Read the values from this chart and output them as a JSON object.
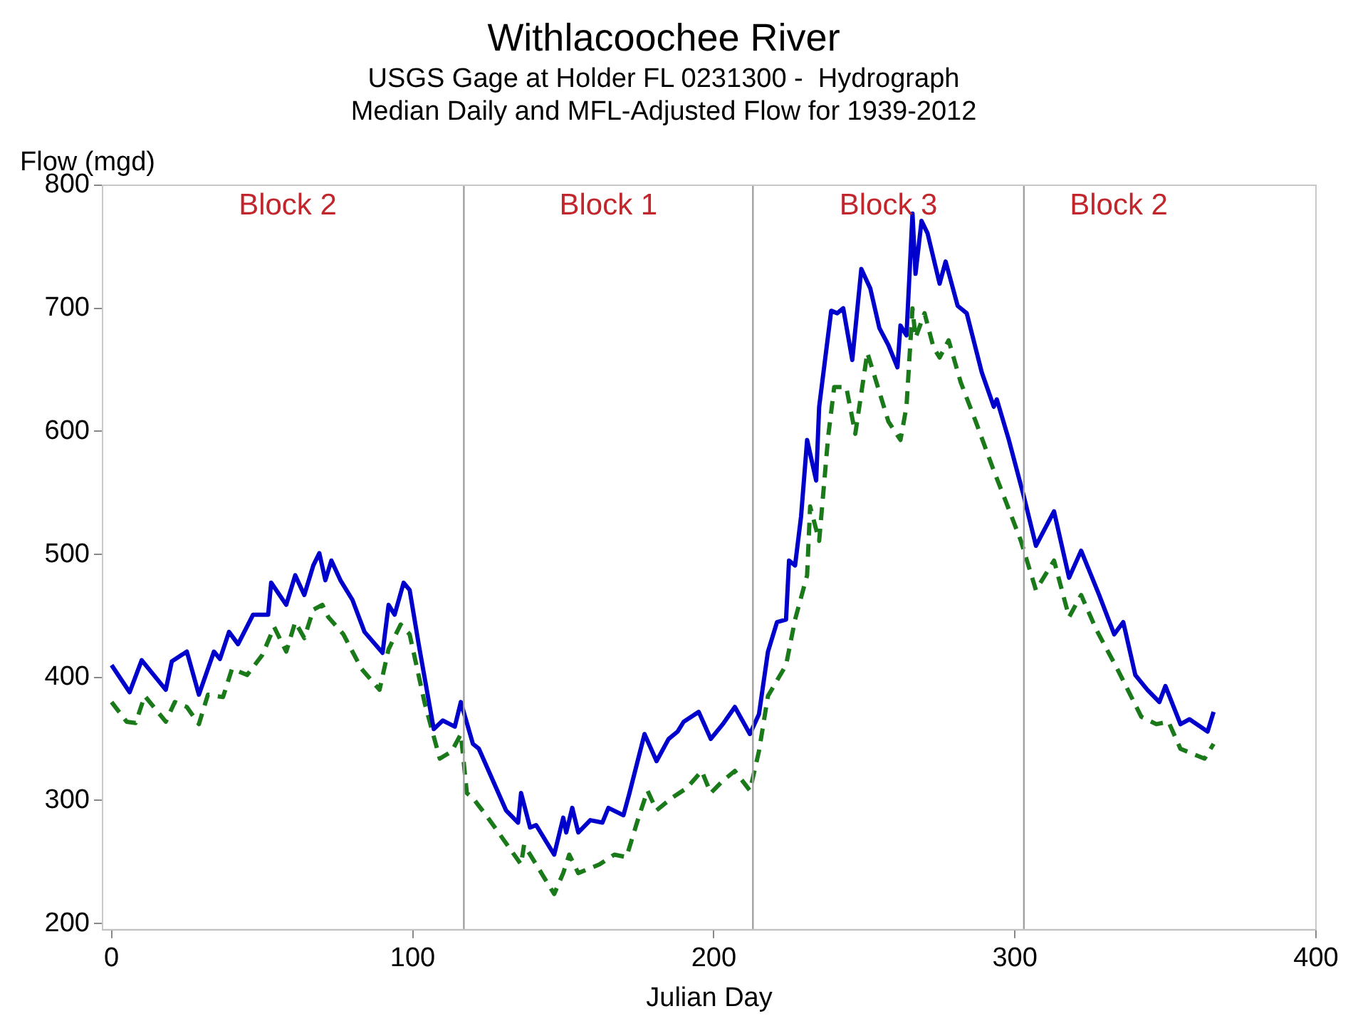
{
  "chart_data": {
    "type": "line",
    "title": "Withlacoochee River",
    "subtitle": "USGS Gage at Holder FL 0231300 -  Hydrograph\nMedian Daily and MFL-Adjusted Flow for 1939-2012",
    "xlabel": "Julian Day",
    "ylabel": "Flow (mgd)",
    "xlim": [
      -3,
      400
    ],
    "xticks": [
      0,
      100,
      200,
      300,
      400
    ],
    "ylim": [
      195,
      800
    ],
    "yticks": [
      200,
      300,
      400,
      500,
      600,
      700,
      800
    ],
    "grid": false,
    "legend": false,
    "marker": "none",
    "ref_lines": [
      {
        "axis": "x",
        "value": 117,
        "color": "#a0a0a0"
      },
      {
        "axis": "x",
        "value": 213,
        "color": "#a0a0a0"
      },
      {
        "axis": "x",
        "value": 303,
        "color": "#a0a0a0"
      }
    ],
    "annotations": [
      "Block 2",
      "Block 1",
      "Block 3",
      "Block 2"
    ],
    "series": [
      {
        "color": "#0000cc",
        "line_style": "solid",
        "x": [
          0,
          6,
          10,
          18,
          20,
          25,
          29,
          34,
          36,
          39,
          42,
          47,
          52,
          53,
          58,
          61,
          64,
          67,
          69,
          71,
          73,
          76,
          80,
          84,
          90,
          92,
          94,
          97,
          99,
          102,
          107,
          110,
          114,
          116,
          120,
          122,
          131,
          135,
          136,
          139,
          141,
          147,
          150,
          151,
          153,
          155,
          159,
          163,
          165,
          170,
          172,
          177,
          181,
          185,
          188,
          190,
          195,
          199,
          203,
          207,
          212,
          215,
          218,
          221,
          224,
          225,
          227,
          229,
          231,
          234,
          235,
          239,
          241,
          243,
          246,
          249,
          252,
          255,
          258,
          261,
          262,
          264,
          266,
          267,
          269,
          271,
          275,
          277,
          281,
          284,
          289,
          293,
          294,
          298,
          303,
          307,
          313,
          318,
          322,
          328,
          333,
          336,
          340,
          344,
          348,
          350,
          355,
          358,
          364,
          366
        ],
        "values": [
          410,
          388,
          414,
          390,
          413,
          421,
          386,
          421,
          415,
          437,
          427,
          451,
          451,
          477,
          459,
          483,
          467,
          491,
          501,
          479,
          495,
          479,
          463,
          437,
          420,
          459,
          451,
          477,
          471,
          427,
          358,
          365,
          360,
          380,
          346,
          342,
          292,
          282,
          306,
          278,
          280,
          256,
          286,
          274,
          294,
          274,
          284,
          282,
          294,
          288,
          306,
          354,
          332,
          350,
          356,
          364,
          372,
          350,
          362,
          376,
          354,
          370,
          421,
          445,
          447,
          495,
          491,
          531,
          593,
          560,
          620,
          698,
          696,
          700,
          658,
          732,
          716,
          684,
          670,
          652,
          686,
          678,
          777,
          728,
          771,
          761,
          720,
          738,
          702,
          696,
          648,
          620,
          626,
          593,
          547,
          507,
          535,
          481,
          503,
          467,
          435,
          445,
          402,
          390,
          380,
          393,
          362,
          366,
          356,
          372
        ]
      },
      {
        "color": "#1a7a1a",
        "line_style": "dashed",
        "x": [
          0,
          5,
          8,
          11,
          18,
          21,
          25,
          29,
          32,
          37,
          40,
          45,
          50,
          54,
          58,
          61,
          64,
          67,
          70,
          72,
          77,
          83,
          89,
          92,
          96,
          99,
          104,
          109,
          113,
          116,
          118,
          120,
          125,
          136,
          137,
          147,
          150,
          152,
          155,
          162,
          167,
          171,
          175,
          178,
          181,
          186,
          191,
          196,
          199,
          203,
          207,
          212,
          215,
          218,
          224,
          227,
          231,
          232,
          235,
          238,
          240,
          244,
          247,
          251,
          254,
          258,
          262,
          264,
          266,
          267,
          270,
          273,
          275,
          278,
          282,
          287,
          293,
          297,
          302,
          307,
          313,
          318,
          322,
          327,
          334,
          342,
          347,
          351,
          355,
          363,
          366
        ],
        "values": [
          380,
          364,
          363,
          385,
          364,
          380,
          376,
          362,
          386,
          384,
          407,
          402,
          418,
          441,
          421,
          445,
          432,
          455,
          459,
          449,
          435,
          407,
          390,
          423,
          443,
          435,
          379,
          334,
          340,
          354,
          306,
          302,
          286,
          248,
          264,
          224,
          241,
          256,
          241,
          248,
          256,
          254,
          286,
          308,
          292,
          302,
          310,
          324,
          306,
          316,
          324,
          308,
          340,
          385,
          410,
          447,
          483,
          539,
          511,
          596,
          636,
          636,
          598,
          664,
          640,
          608,
          593,
          620,
          700,
          676,
          696,
          668,
          660,
          674,
          640,
          608,
          568,
          543,
          511,
          471,
          495,
          449,
          467,
          439,
          407,
          368,
          362,
          364,
          342,
          334,
          346
        ]
      }
    ]
  }
}
